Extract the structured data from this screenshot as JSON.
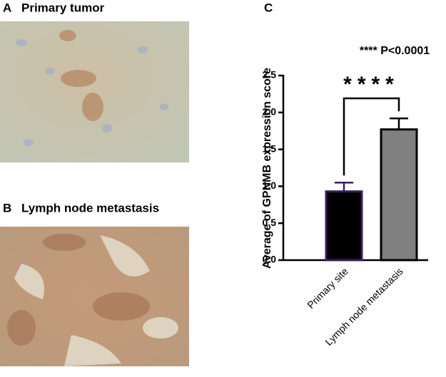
{
  "panels": [
    {
      "label": "A",
      "title": "Primary tumor"
    },
    {
      "label": "B",
      "title": "Lymph node metastasis"
    }
  ],
  "chart_data": {
    "type": "bar",
    "label": "C",
    "annotation": "**** P<0.0001",
    "significance": "****",
    "y_label": "Average of GPNMB expression score",
    "categories": [
      "Primary site",
      "Lymph node metastasis"
    ],
    "values": [
      0.93,
      1.77
    ],
    "errors": [
      0.12,
      0.15
    ],
    "colors": [
      "#000000",
      "#808080"
    ],
    "edge_colors": [
      "#3b1d5e",
      "#000000"
    ],
    "ylim": [
      0,
      2.5
    ],
    "yticks": [
      {
        "value": 0,
        "label": "0.0"
      },
      0.5,
      {
        "value": 1,
        "label": "1.0"
      },
      1.5,
      {
        "value": 2,
        "label": "2.0"
      },
      2.5
    ]
  }
}
